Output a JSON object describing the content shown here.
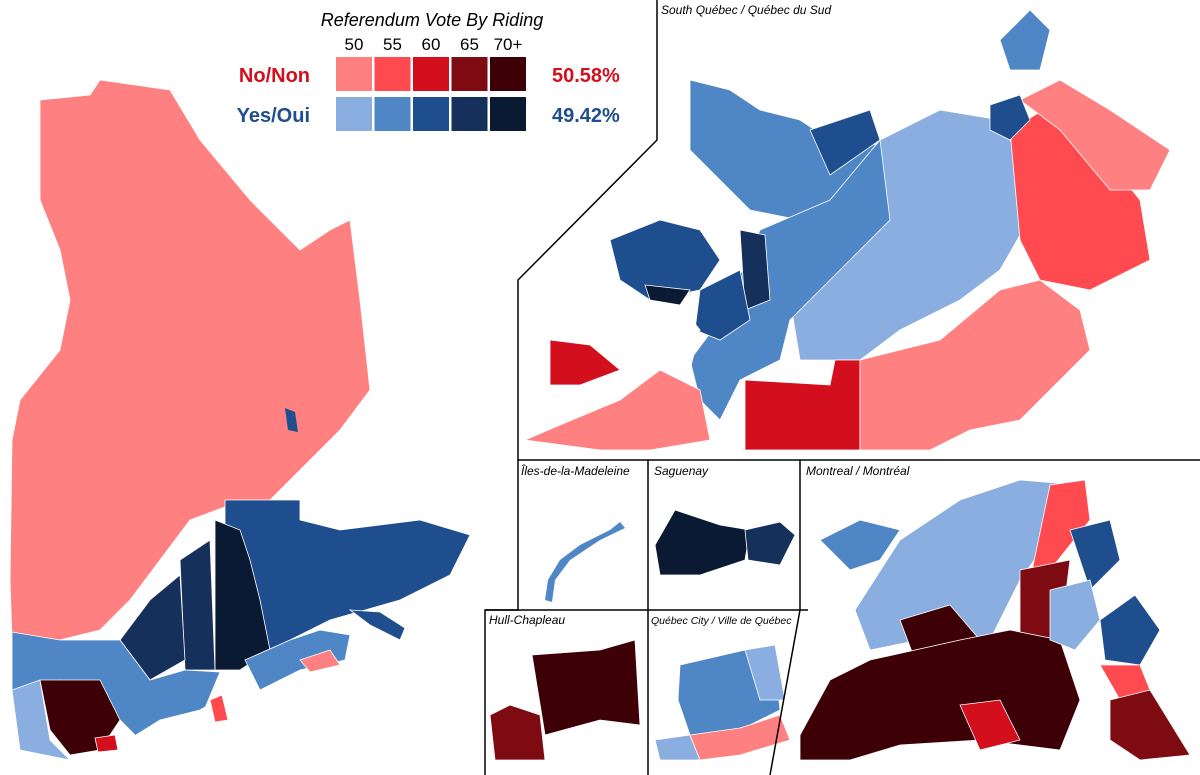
{
  "legend": {
    "title": "Referendum Vote By Riding",
    "thresholds": [
      "50",
      "55",
      "60",
      "65",
      "70+"
    ],
    "no": {
      "label": "No/Non",
      "result": "50.58%",
      "colors": [
        "#ff8080",
        "#ff4a50",
        "#d40f1d",
        "#7e0a12",
        "#3d0007"
      ]
    },
    "yes": {
      "label": "Yes/Oui",
      "result": "49.42%",
      "colors": [
        "#8aaee0",
        "#4f86c6",
        "#1f4e8e",
        "#15305b",
        "#0a1a33"
      ]
    }
  },
  "insets": {
    "south": "South Québec / Québec du Sud",
    "madeleine": "Îles-de-la-Madeleine",
    "saguenay": "Saguenay",
    "montreal": "Montreal / Montréal",
    "hull": "Hull-Chapleau",
    "quebec_city": "Québec City / Ville de Québec"
  }
}
